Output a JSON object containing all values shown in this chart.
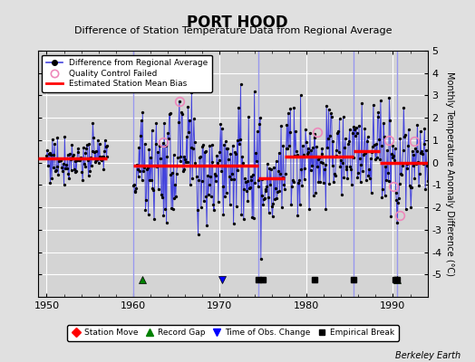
{
  "title": "PORT HOOD",
  "subtitle": "Difference of Station Temperature Data from Regional Average",
  "ylabel": "Monthly Temperature Anomaly Difference (°C)",
  "credit": "Berkeley Earth",
  "xlim": [
    1949.0,
    1994.0
  ],
  "ylim": [
    -6,
    5
  ],
  "yticks": [
    -5,
    -4,
    -3,
    -2,
    -1,
    0,
    1,
    2,
    3,
    4,
    5
  ],
  "ytick_labels": [
    "-5",
    "-4",
    "-3",
    "-2",
    "-1",
    "0",
    "1",
    "2",
    "3",
    "4",
    "5"
  ],
  "xticks": [
    1950,
    1960,
    1970,
    1980,
    1990
  ],
  "bg_color": "#e0e0e0",
  "plot_bg_color": "#d4d4d4",
  "grid_color": "white",
  "line_color": "#4444dd",
  "bias_color": "red",
  "bias_lw": 2.5,
  "segments": [
    {
      "xstart": 1949.0,
      "xend": 1957.0,
      "bias": 0.18
    },
    {
      "xstart": 1960.0,
      "xend": 1974.5,
      "bias": -0.12
    },
    {
      "xstart": 1974.5,
      "xend": 1977.5,
      "bias": -0.7
    },
    {
      "xstart": 1977.5,
      "xend": 1985.5,
      "bias": 0.28
    },
    {
      "xstart": 1985.5,
      "xend": 1988.5,
      "bias": 0.5
    },
    {
      "xstart": 1988.5,
      "xend": 1994.0,
      "bias": 0.0
    }
  ],
  "qc_failed": [
    [
      1963.5,
      0.9
    ],
    [
      1965.33,
      2.75
    ],
    [
      1981.25,
      1.35
    ],
    [
      1989.5,
      1.0
    ],
    [
      1990.08,
      -1.05
    ],
    [
      1990.75,
      -2.35
    ],
    [
      1992.5,
      0.95
    ]
  ],
  "record_gaps": [
    1961.0,
    1990.5
  ],
  "obs_changes": [
    1970.25
  ],
  "empirical_breaks": [
    1974.42,
    1975.0,
    1981.0,
    1985.5,
    1990.25,
    1990.5
  ],
  "vertical_lines": [
    1960.0,
    1974.5,
    1985.5,
    1990.5
  ],
  "vertical_line_color": "#9999ee",
  "vertical_line_lw": 1.0,
  "marker_y": -5.25,
  "title_fontsize": 12,
  "subtitle_fontsize": 8,
  "tick_fontsize": 8,
  "ylabel_fontsize": 7
}
